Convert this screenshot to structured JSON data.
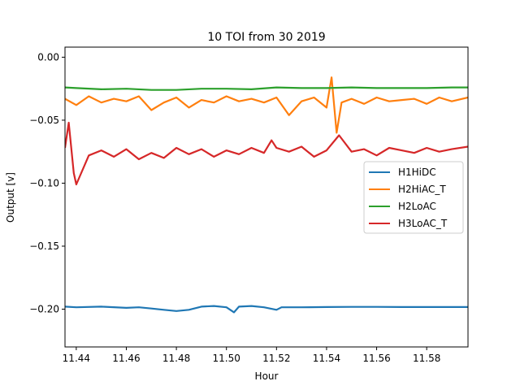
{
  "chart_data": {
    "type": "line",
    "title": "10 TOI from 30 2019",
    "xlabel": "Hour",
    "ylabel": "Output [v]",
    "xlim": [
      11.4355,
      11.5965
    ],
    "ylim": [
      -0.23,
      0.008
    ],
    "xticks": [
      11.44,
      11.46,
      11.48,
      11.5,
      11.52,
      11.54,
      11.56,
      11.58
    ],
    "xtick_labels": [
      "11.44",
      "11.46",
      "11.48",
      "11.50",
      "11.52",
      "11.54",
      "11.56",
      "11.58"
    ],
    "yticks": [
      0.0,
      -0.05,
      -0.1,
      -0.15,
      -0.2
    ],
    "ytick_labels": [
      "0.00",
      "−0.05",
      "−0.10",
      "−0.15",
      "−0.20"
    ],
    "grid": false,
    "legend_placement": "center-right",
    "series": [
      {
        "name": "H1HiDC",
        "color": "#1f77b4",
        "x": [
          11.4355,
          11.44,
          11.45,
          11.46,
          11.465,
          11.47,
          11.475,
          11.48,
          11.485,
          11.49,
          11.495,
          11.5,
          11.503,
          11.505,
          11.51,
          11.515,
          11.52,
          11.522,
          11.53,
          11.54,
          11.55,
          11.56,
          11.57,
          11.58,
          11.59,
          11.5965
        ],
        "y": [
          -0.198,
          -0.1985,
          -0.198,
          -0.199,
          -0.1985,
          -0.1995,
          -0.2005,
          -0.2015,
          -0.2005,
          -0.198,
          -0.1975,
          -0.1985,
          -0.2025,
          -0.198,
          -0.1975,
          -0.1985,
          -0.2005,
          -0.1985,
          -0.1985,
          -0.1983,
          -0.1982,
          -0.1982,
          -0.1983,
          -0.1983,
          -0.1983,
          -0.1983
        ]
      },
      {
        "name": "H2HiAC_T",
        "color": "#ff7f0e",
        "x": [
          11.4355,
          11.44,
          11.445,
          11.45,
          11.455,
          11.46,
          11.465,
          11.47,
          11.475,
          11.48,
          11.485,
          11.49,
          11.495,
          11.5,
          11.505,
          11.51,
          11.515,
          11.52,
          11.525,
          11.53,
          11.535,
          11.54,
          11.542,
          11.544,
          11.546,
          11.55,
          11.555,
          11.56,
          11.565,
          11.57,
          11.575,
          11.58,
          11.585,
          11.59,
          11.5965
        ],
        "y": [
          -0.033,
          -0.038,
          -0.031,
          -0.036,
          -0.033,
          -0.035,
          -0.031,
          -0.042,
          -0.036,
          -0.032,
          -0.04,
          -0.034,
          -0.036,
          -0.031,
          -0.035,
          -0.033,
          -0.036,
          -0.032,
          -0.046,
          -0.035,
          -0.032,
          -0.04,
          -0.016,
          -0.06,
          -0.036,
          -0.033,
          -0.037,
          -0.032,
          -0.035,
          -0.034,
          -0.033,
          -0.037,
          -0.032,
          -0.035,
          -0.032
        ]
      },
      {
        "name": "H2LoAC",
        "color": "#2ca02c",
        "x": [
          11.4355,
          11.44,
          11.45,
          11.46,
          11.47,
          11.48,
          11.49,
          11.5,
          11.51,
          11.52,
          11.53,
          11.54,
          11.55,
          11.56,
          11.57,
          11.58,
          11.59,
          11.5965
        ],
        "y": [
          -0.024,
          -0.0245,
          -0.0255,
          -0.025,
          -0.026,
          -0.026,
          -0.025,
          -0.025,
          -0.0255,
          -0.024,
          -0.0245,
          -0.0245,
          -0.024,
          -0.0245,
          -0.0245,
          -0.0245,
          -0.024,
          -0.024
        ]
      },
      {
        "name": "H3LoAC_T",
        "color": "#d62728",
        "x": [
          11.4355,
          11.437,
          11.439,
          11.44,
          11.445,
          11.45,
          11.455,
          11.46,
          11.465,
          11.47,
          11.475,
          11.48,
          11.485,
          11.49,
          11.495,
          11.5,
          11.505,
          11.51,
          11.515,
          11.518,
          11.52,
          11.525,
          11.53,
          11.535,
          11.54,
          11.545,
          11.55,
          11.555,
          11.56,
          11.565,
          11.57,
          11.575,
          11.58,
          11.585,
          11.59,
          11.5965
        ],
        "y": [
          -0.072,
          -0.052,
          -0.092,
          -0.101,
          -0.078,
          -0.074,
          -0.079,
          -0.073,
          -0.081,
          -0.076,
          -0.08,
          -0.072,
          -0.077,
          -0.073,
          -0.079,
          -0.074,
          -0.077,
          -0.072,
          -0.076,
          -0.066,
          -0.072,
          -0.075,
          -0.071,
          -0.079,
          -0.074,
          -0.062,
          -0.075,
          -0.073,
          -0.078,
          -0.072,
          -0.074,
          -0.076,
          -0.072,
          -0.075,
          -0.073,
          -0.071
        ]
      }
    ]
  }
}
